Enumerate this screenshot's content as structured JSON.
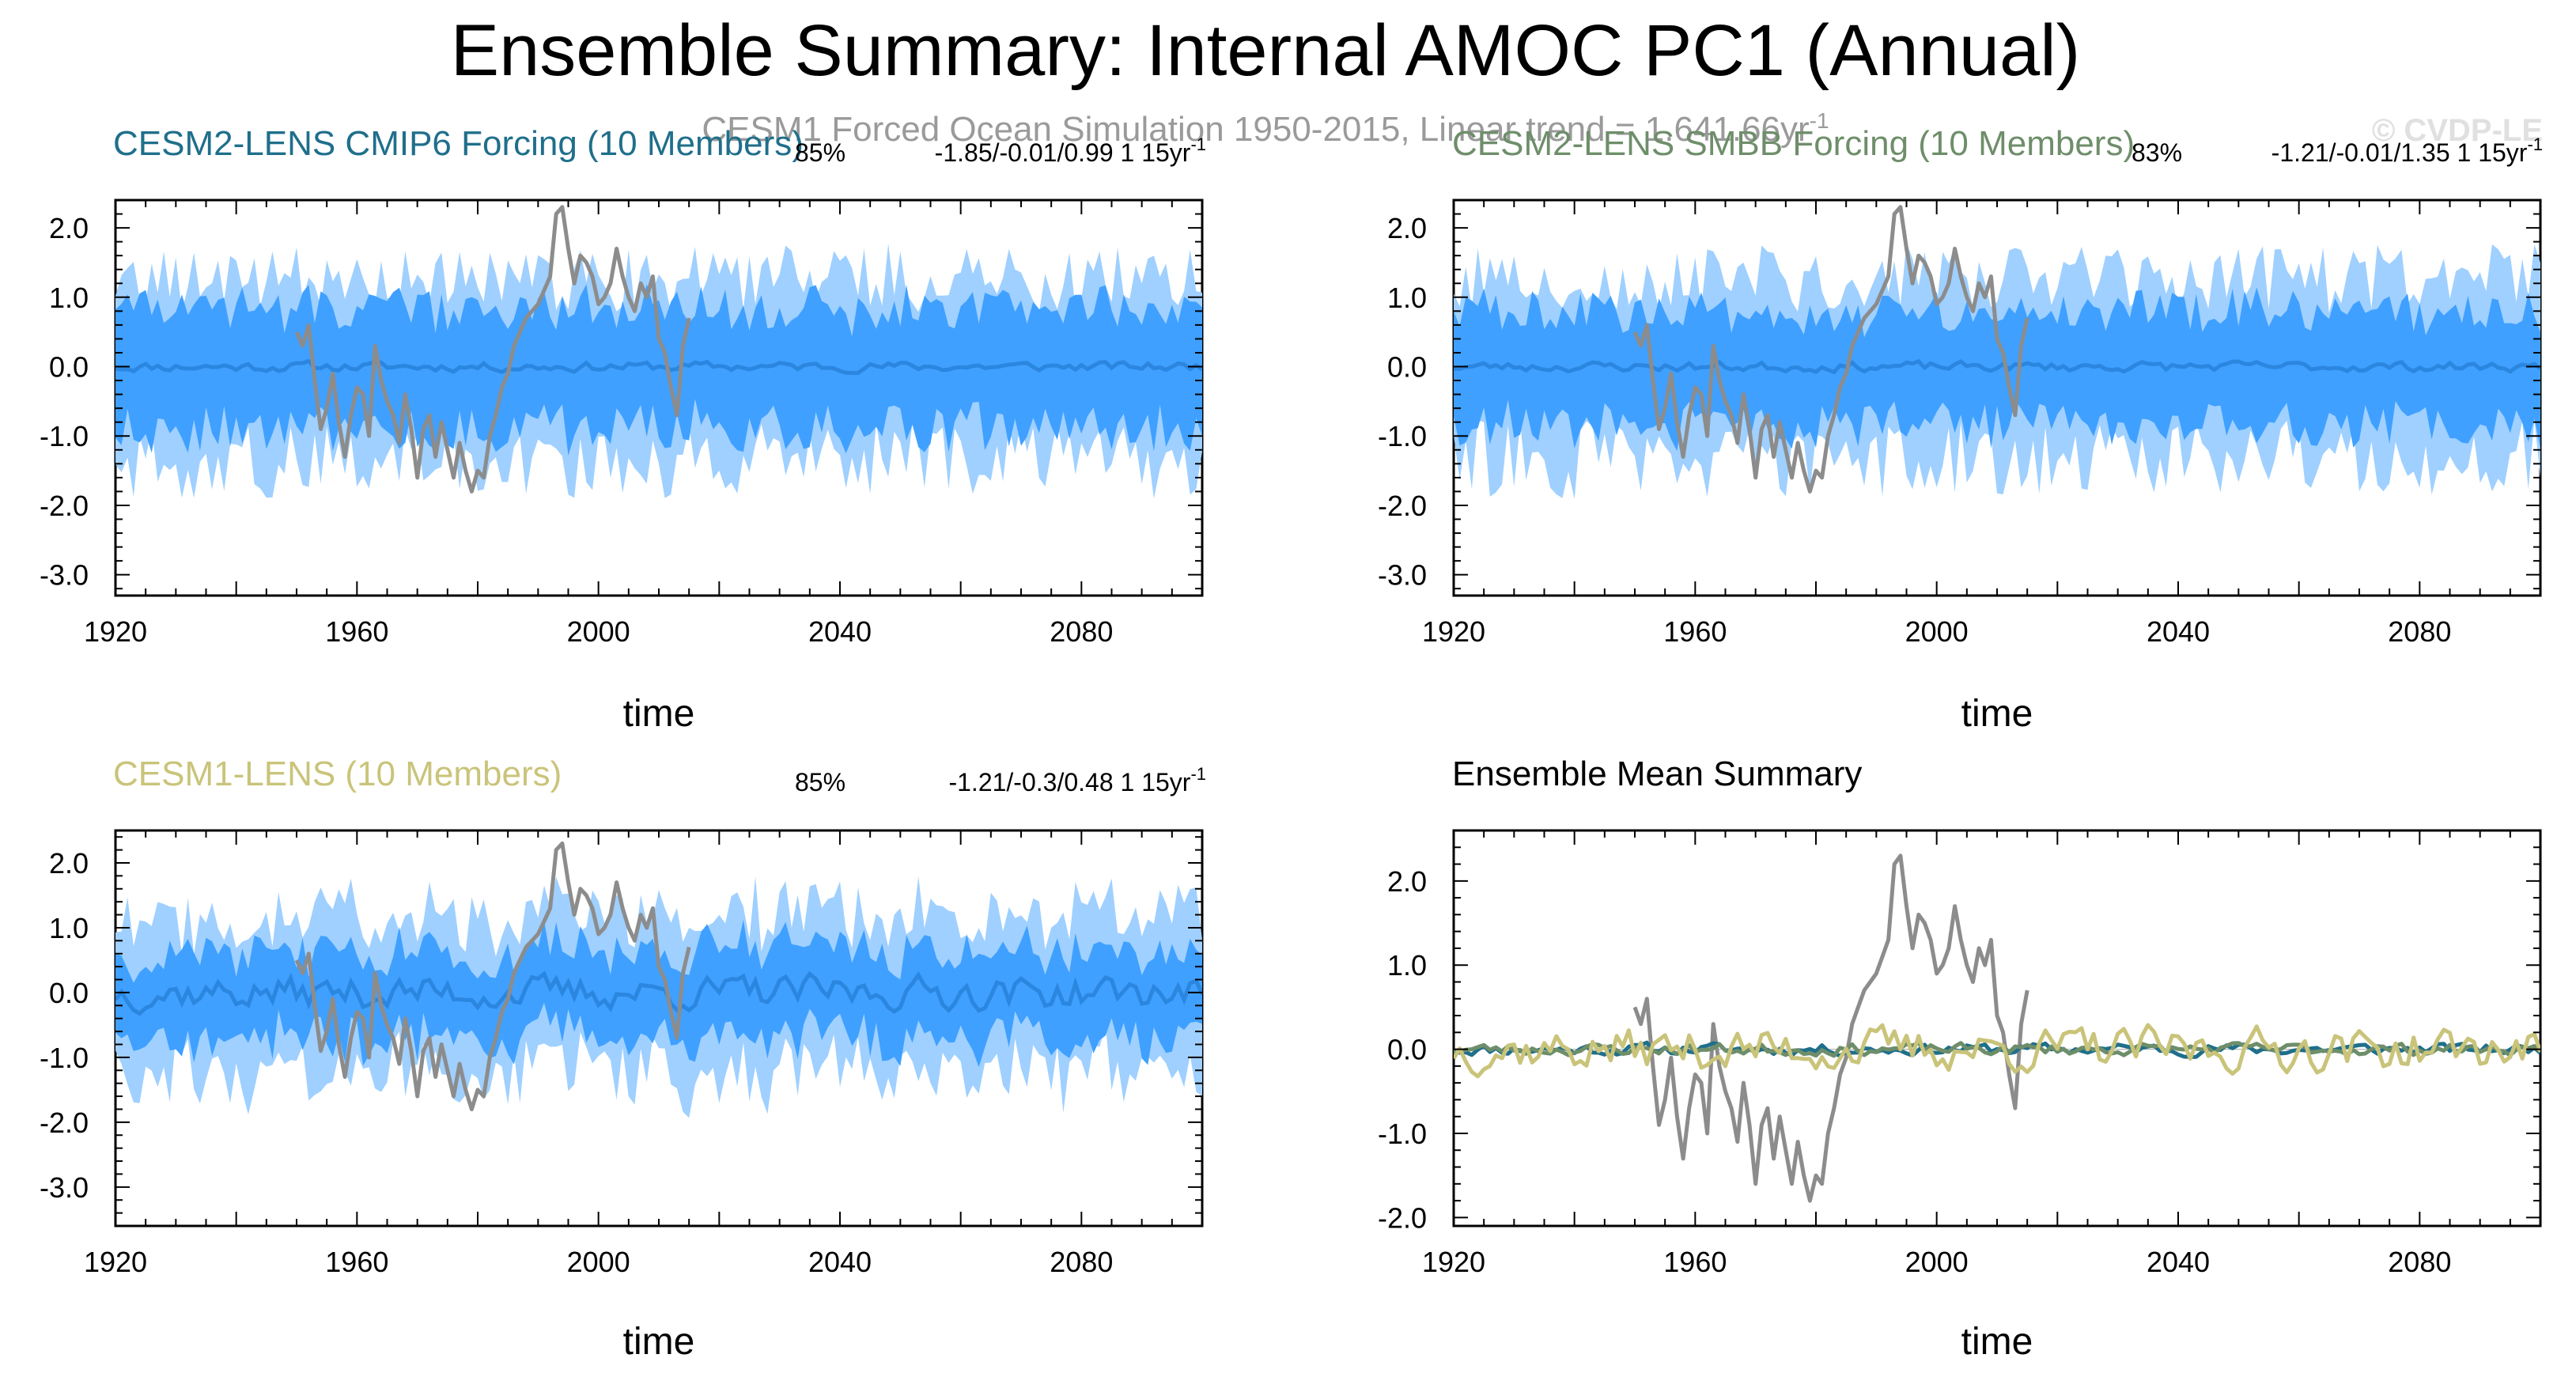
{
  "figure_title": "Ensemble Summary: Internal AMOC PC1 (Annual)",
  "subtitle": "CESM1 Forced Ocean Simulation 1950-2015, Linear trend = 1.641.66yr",
  "subtitle_sup": "-1",
  "watermark": "© CVDP-LE",
  "colors": {
    "band_outer": "#9fd0ff",
    "band_inner": "#3fa0ff",
    "ens_mean_line": "#2b86e0",
    "obs_line": "#8c8c8c",
    "cesm2_cmip6": "#1f6f8b",
    "cesm2_smbb": "#6e8e6a",
    "cesm1": "#c9c47a"
  },
  "chart_data": [
    {
      "id": "p1",
      "type": "area",
      "title": "CESM2-LENS CMIP6 Forcing (10 Members)",
      "title_color": "#1f6f8b",
      "pct": "85%",
      "stats": "-1.85/-0.01/0.99 1 15yr",
      "stats_sup": "-1",
      "xlabel": "time",
      "xlim": [
        1920,
        2100
      ],
      "ylim": [
        -3.3,
        2.4
      ],
      "xticks": [
        "1920",
        "1960",
        "2000",
        "2040",
        "2080"
      ],
      "yticks": [
        "2.0",
        "1.0",
        "0.0",
        "-1.0",
        "-2.0",
        "-3.0"
      ],
      "outer_amp": 1.45,
      "inner_amp": 0.95,
      "mean_amp": 0.06,
      "seed": 11
    },
    {
      "id": "p2",
      "type": "area",
      "title": "CESM2-LENS SMBB Forcing (10 Members)",
      "title_color": "#6e8e6a",
      "pct": "83%",
      "stats": "-1.21/-0.01/1.35 1 15yr",
      "stats_sup": "-1",
      "xlabel": "time",
      "xlim": [
        1920,
        2100
      ],
      "ylim": [
        -3.3,
        2.4
      ],
      "xticks": [
        "1920",
        "1960",
        "2000",
        "2040",
        "2080"
      ],
      "yticks": [
        "2.0",
        "1.0",
        "0.0",
        "-1.0",
        "-2.0",
        "-3.0"
      ],
      "outer_amp": 1.45,
      "inner_amp": 0.9,
      "mean_amp": 0.06,
      "seed": 23
    },
    {
      "id": "p3",
      "type": "area",
      "title": "CESM1-LENS (10 Members)",
      "title_color": "#c9c47a",
      "pct": "85%",
      "stats": "-1.21/-0.3/0.48 1 15yr",
      "stats_sup": "-1",
      "xlabel": "time",
      "xlim": [
        1920,
        2100
      ],
      "ylim": [
        -3.6,
        2.5
      ],
      "xticks": [
        "1920",
        "1960",
        "2000",
        "2040",
        "2080"
      ],
      "yticks": [
        "2.0",
        "1.0",
        "0.0",
        "-1.0",
        "-2.0",
        "-3.0"
      ],
      "outer_amp": 1.35,
      "inner_amp": 0.75,
      "mean_amp": 0.22,
      "seed": 37
    },
    {
      "id": "p4",
      "type": "line",
      "title": "Ensemble Mean Summary",
      "title_color": "#000000",
      "xlabel": "time",
      "xlim": [
        1920,
        2100
      ],
      "ylim": [
        -2.1,
        2.6
      ],
      "xticks": [
        "1920",
        "1960",
        "2000",
        "2040",
        "2080"
      ],
      "yticks": [
        "2.0",
        "1.0",
        "0.0",
        "-1.0",
        "-2.0"
      ],
      "series": [
        {
          "name": "CESM2-LENS CMIP6 Forcing",
          "color": "#1f6f8b",
          "amp": 0.06,
          "seed": 11
        },
        {
          "name": "CESM2-LENS SMBB Forcing",
          "color": "#6e8e6a",
          "amp": 0.06,
          "seed": 23
        },
        {
          "name": "CESM1-LENS",
          "color": "#c9c47a",
          "amp": 0.22,
          "seed": 37
        }
      ]
    }
  ],
  "observations": {
    "name": "CESM1 Forced Ocean Simulation",
    "years": [
      1950,
      1951,
      1952,
      1953,
      1954,
      1955,
      1956,
      1957,
      1958,
      1959,
      1960,
      1961,
      1962,
      1963,
      1964,
      1965,
      1966,
      1967,
      1968,
      1969,
      1970,
      1971,
      1972,
      1973,
      1974,
      1975,
      1976,
      1977,
      1978,
      1979,
      1980,
      1981,
      1982,
      1983,
      1984,
      1985,
      1986,
      1987,
      1988,
      1989,
      1990,
      1991,
      1992,
      1993,
      1994,
      1995,
      1996,
      1997,
      1998,
      1999,
      2000,
      2001,
      2002,
      2003,
      2004,
      2005,
      2006,
      2007,
      2008,
      2009,
      2010,
      2011,
      2012,
      2013,
      2014,
      2015
    ],
    "values": [
      0.5,
      0.3,
      0.6,
      -0.2,
      -0.9,
      -0.6,
      -0.1,
      -0.8,
      -1.3,
      -0.7,
      -0.3,
      -0.4,
      -1.0,
      0.3,
      -0.2,
      -0.5,
      -0.7,
      -1.1,
      -0.4,
      -0.9,
      -1.6,
      -0.9,
      -0.7,
      -1.3,
      -0.8,
      -1.2,
      -1.6,
      -1.1,
      -1.5,
      -1.8,
      -1.5,
      -1.6,
      -1.0,
      -0.7,
      -0.3,
      -0.1,
      0.3,
      0.5,
      0.7,
      0.8,
      0.9,
      1.1,
      1.3,
      2.2,
      2.3,
      1.7,
      1.2,
      1.6,
      1.5,
      1.3,
      0.9,
      1.0,
      1.2,
      1.7,
      1.3,
      1.0,
      0.8,
      1.2,
      1.0,
      1.3,
      0.4,
      0.2,
      -0.3,
      -0.7,
      0.3,
      0.7
    ]
  }
}
